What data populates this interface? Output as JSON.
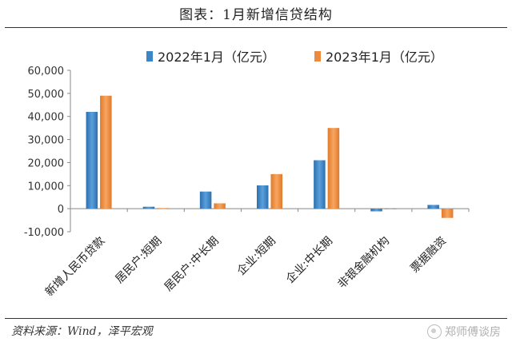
{
  "title": "图表：1月新增信贷结构",
  "legend": [
    {
      "label": "2022年1月（亿元）",
      "color": "#3d86c6"
    },
    {
      "label": "2023年1月（亿元）",
      "color": "#ed8a3c"
    }
  ],
  "source": "资料来源：Wind，泽平宏观",
  "watermark": "郑师傅谈房",
  "chart_data": {
    "type": "bar",
    "categories": [
      "新增人民币贷款",
      "居民户:短期",
      "居民户:中长期",
      "企业:短期",
      "企业:中长期",
      "非银金融机构",
      "票据融资"
    ],
    "series": [
      {
        "name": "2022年1月（亿元）",
        "color": "#3d86c6",
        "values": [
          41988,
          843,
          7424,
          10101,
          21003,
          -1162,
          1634
        ]
      },
      {
        "name": "2023年1月（亿元）",
        "color": "#ed8a3c",
        "values": [
          49000,
          257,
          2315,
          15000,
          35000,
          -300,
          -4011
        ]
      }
    ],
    "ylim": [
      -10000,
      60000
    ],
    "yticks": [
      -10000,
      0,
      10000,
      20000,
      30000,
      40000,
      50000,
      60000
    ],
    "ytick_labels": [
      "-10,000",
      "0",
      "10,000",
      "20,000",
      "30,000",
      "40,000",
      "50,000",
      "60,000"
    ],
    "grid": false,
    "legend_position": "top"
  }
}
